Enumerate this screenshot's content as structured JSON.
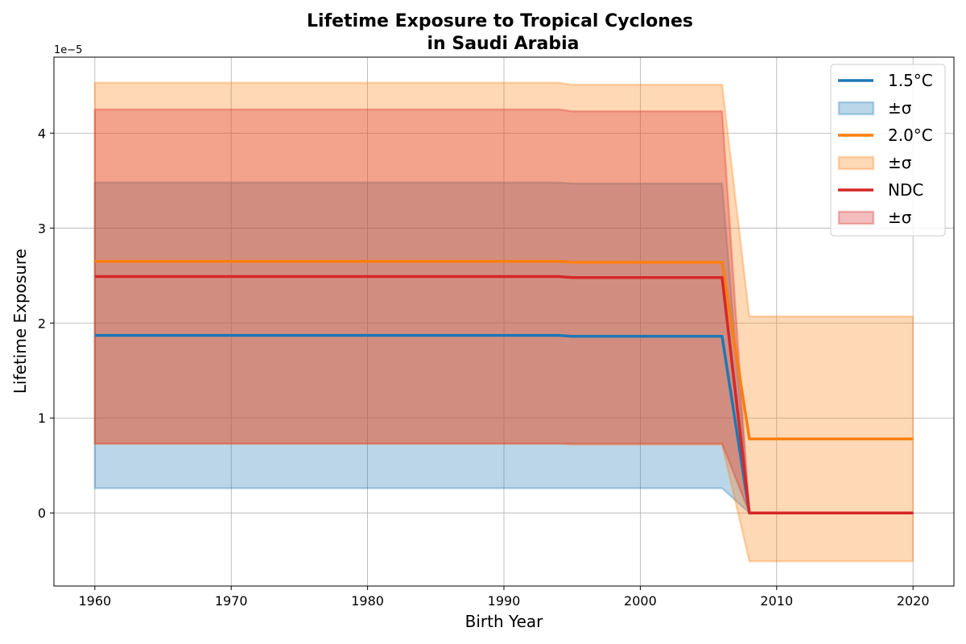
{
  "chart_data": {
    "type": "line",
    "title": [
      "Lifetime Exposure to Tropical Cyclones",
      "in Saudi Arabia"
    ],
    "xlabel": "Birth Year",
    "ylabel": "Lifetime Exposure",
    "y_scale_offset": "1e−5",
    "xlim": [
      1957,
      2023
    ],
    "ylim": [
      -0.77,
      4.8
    ],
    "x_ticks": [
      1960,
      1970,
      1980,
      1990,
      2000,
      2010,
      2020
    ],
    "y_ticks": [
      0,
      1,
      2,
      3,
      4
    ],
    "grid": true,
    "legend_position": "upper right",
    "x": [
      1960,
      1994,
      1995,
      2006,
      2008,
      2020
    ],
    "series": [
      {
        "name": "1.5°C",
        "band_label": "±σ",
        "color": "#1f77b4",
        "values": [
          1.87,
          1.87,
          1.86,
          1.86,
          0.0,
          0.0
        ],
        "lower": [
          0.26,
          0.26,
          0.26,
          0.26,
          0.0,
          0.0
        ],
        "upper": [
          3.48,
          3.48,
          3.47,
          3.47,
          0.0,
          0.0
        ]
      },
      {
        "name": "2.0°C",
        "band_label": "±σ",
        "color": "#ff7f0e",
        "values": [
          2.65,
          2.65,
          2.64,
          2.64,
          0.78,
          0.78
        ],
        "lower": [
          0.73,
          0.73,
          0.72,
          0.72,
          -0.51,
          -0.51
        ],
        "upper": [
          4.53,
          4.53,
          4.51,
          4.51,
          2.07,
          2.07
        ]
      },
      {
        "name": "NDC",
        "band_label": "±σ",
        "color": "#d62728",
        "values": [
          2.49,
          2.49,
          2.48,
          2.48,
          0.0,
          0.0
        ],
        "lower": [
          0.73,
          0.73,
          0.73,
          0.73,
          0.0,
          0.0
        ],
        "upper": [
          4.25,
          4.25,
          4.23,
          4.23,
          0.0,
          0.0
        ]
      }
    ]
  }
}
